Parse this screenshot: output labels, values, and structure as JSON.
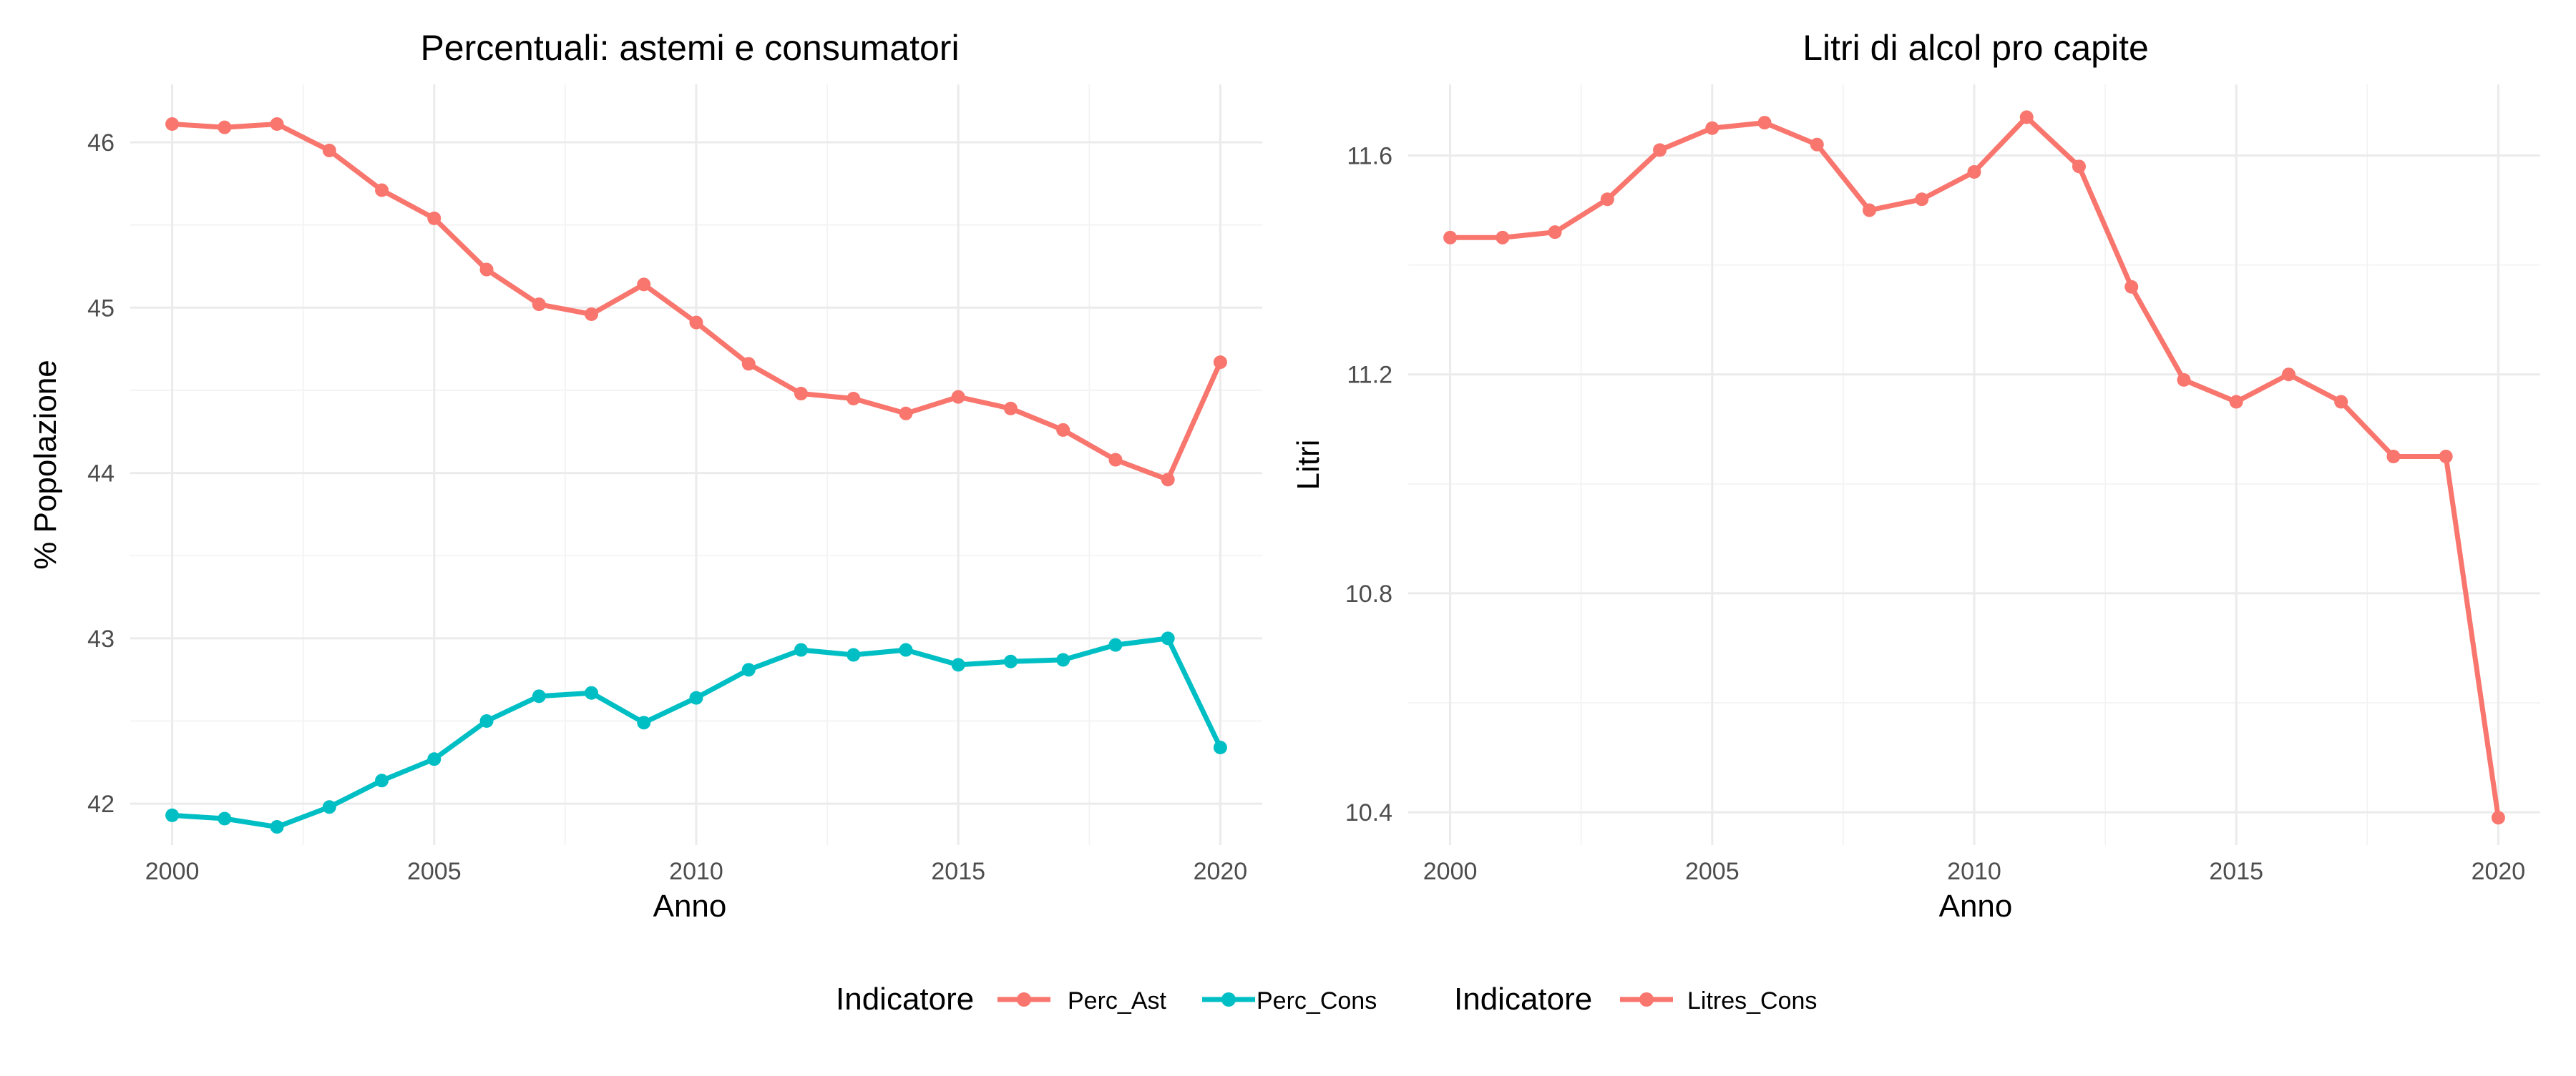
{
  "chart_data": [
    {
      "type": "line",
      "title": "Percentuali: astemi e consumatori",
      "xlabel": "Anno",
      "ylabel": "% Popolazione",
      "xlim": [
        1999.2,
        2020.8
      ],
      "ylim": [
        41.75,
        46.35
      ],
      "x_ticks": [
        2000,
        2005,
        2010,
        2015,
        2020
      ],
      "y_ticks": [
        42,
        43,
        44,
        45,
        46
      ],
      "grid": true,
      "legend_title": "Indicatore",
      "legend_position": "bottom",
      "x": [
        2000,
        2001,
        2002,
        2003,
        2004,
        2005,
        2006,
        2007,
        2008,
        2009,
        2010,
        2011,
        2012,
        2013,
        2014,
        2015,
        2016,
        2017,
        2018,
        2019,
        2020
      ],
      "series": [
        {
          "name": "Perc_Ast",
          "color": "#F8766D",
          "values": [
            46.11,
            46.09,
            46.11,
            45.95,
            45.71,
            45.54,
            45.23,
            45.02,
            44.96,
            45.14,
            44.91,
            44.66,
            44.48,
            44.45,
            44.36,
            44.46,
            44.39,
            44.26,
            44.08,
            43.96,
            44.67
          ]
        },
        {
          "name": "Perc_Cons",
          "color": "#00BFC4",
          "values": [
            41.93,
            41.91,
            41.86,
            41.98,
            42.14,
            42.27,
            42.5,
            42.65,
            42.67,
            42.49,
            42.64,
            42.81,
            42.93,
            42.9,
            42.93,
            42.84,
            42.86,
            42.87,
            42.96,
            43.0,
            42.34
          ]
        }
      ]
    },
    {
      "type": "line",
      "title": "Litri di alcol pro capite",
      "xlabel": "Anno",
      "ylabel": "Litri",
      "xlim": [
        1999.2,
        2020.8
      ],
      "ylim": [
        10.34,
        11.73
      ],
      "x_ticks": [
        2000,
        2005,
        2010,
        2015,
        2020
      ],
      "y_ticks": [
        10.4,
        10.8,
        11.2,
        11.6
      ],
      "grid": true,
      "legend_title": "Indicatore",
      "legend_position": "bottom",
      "x": [
        2000,
        2001,
        2002,
        2003,
        2004,
        2005,
        2006,
        2007,
        2008,
        2009,
        2010,
        2011,
        2012,
        2013,
        2014,
        2015,
        2016,
        2017,
        2018,
        2019,
        2020
      ],
      "series": [
        {
          "name": "Litres_Cons",
          "color": "#F8766D",
          "values": [
            11.45,
            11.45,
            11.46,
            11.52,
            11.61,
            11.65,
            11.66,
            11.62,
            11.5,
            11.52,
            11.57,
            11.67,
            11.58,
            11.36,
            11.19,
            11.15,
            11.2,
            11.15,
            11.05,
            11.05,
            10.39
          ]
        }
      ]
    }
  ]
}
